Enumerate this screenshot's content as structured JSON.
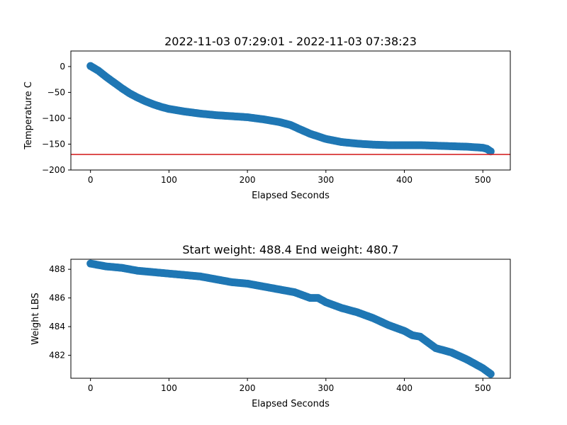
{
  "chart_data": [
    {
      "type": "scatter",
      "title": "2022-11-03 07:29:01 - 2022-11-03 07:38:23",
      "xlabel": "Elapsed Seconds",
      "ylabel": "Temperature C",
      "xlim": [
        -25,
        535
      ],
      "ylim": [
        -200,
        30
      ],
      "xticks": [
        0,
        100,
        200,
        300,
        400,
        500
      ],
      "yticks": [
        0,
        -50,
        -100,
        -150,
        -200
      ],
      "ytick_labels": [
        "0",
        "−50",
        "−100",
        "−150",
        "−200"
      ],
      "grid": false,
      "color": "#1f77b4",
      "reference_line": {
        "y": -170,
        "color": "#d62728"
      },
      "series": [
        {
          "x": [
            0,
            10,
            20,
            30,
            40,
            50,
            60,
            70,
            80,
            90,
            100,
            120,
            140,
            160,
            180,
            200,
            220,
            240,
            255,
            265,
            280,
            300,
            320,
            340,
            360,
            380,
            400,
            420,
            440,
            460,
            480,
            500,
            505,
            510
          ],
          "y": [
            1,
            -8,
            -20,
            -31,
            -42,
            -52,
            -60,
            -67,
            -73,
            -78,
            -82,
            -87,
            -91,
            -94,
            -96,
            -98,
            -102,
            -107,
            -113,
            -120,
            -130,
            -140,
            -146,
            -149,
            -151,
            -152,
            -152,
            -152,
            -153,
            -154,
            -155,
            -157,
            -159,
            -164
          ]
        }
      ]
    },
    {
      "type": "scatter",
      "title": "Start weight: 488.4 End weight: 480.7",
      "xlabel": "Elapsed Seconds",
      "ylabel": "Weight LBS",
      "xlim": [
        -25,
        535
      ],
      "ylim": [
        480.4,
        488.7
      ],
      "xticks": [
        0,
        100,
        200,
        300,
        400,
        500
      ],
      "yticks": [
        482,
        484,
        486,
        488
      ],
      "grid": false,
      "color": "#1f77b4",
      "series": [
        {
          "x": [
            0,
            10,
            20,
            40,
            60,
            80,
            100,
            120,
            140,
            160,
            180,
            200,
            220,
            240,
            260,
            280,
            290,
            300,
            320,
            340,
            360,
            380,
            400,
            410,
            420,
            430,
            440,
            460,
            480,
            500,
            510
          ],
          "y": [
            488.4,
            488.3,
            488.2,
            488.1,
            487.9,
            487.8,
            487.7,
            487.6,
            487.5,
            487.3,
            487.1,
            487.0,
            486.8,
            486.6,
            486.4,
            486.0,
            486.0,
            485.7,
            485.3,
            485.0,
            484.6,
            484.1,
            483.7,
            483.4,
            483.3,
            482.9,
            482.5,
            482.2,
            481.7,
            481.1,
            480.7
          ]
        }
      ]
    }
  ]
}
